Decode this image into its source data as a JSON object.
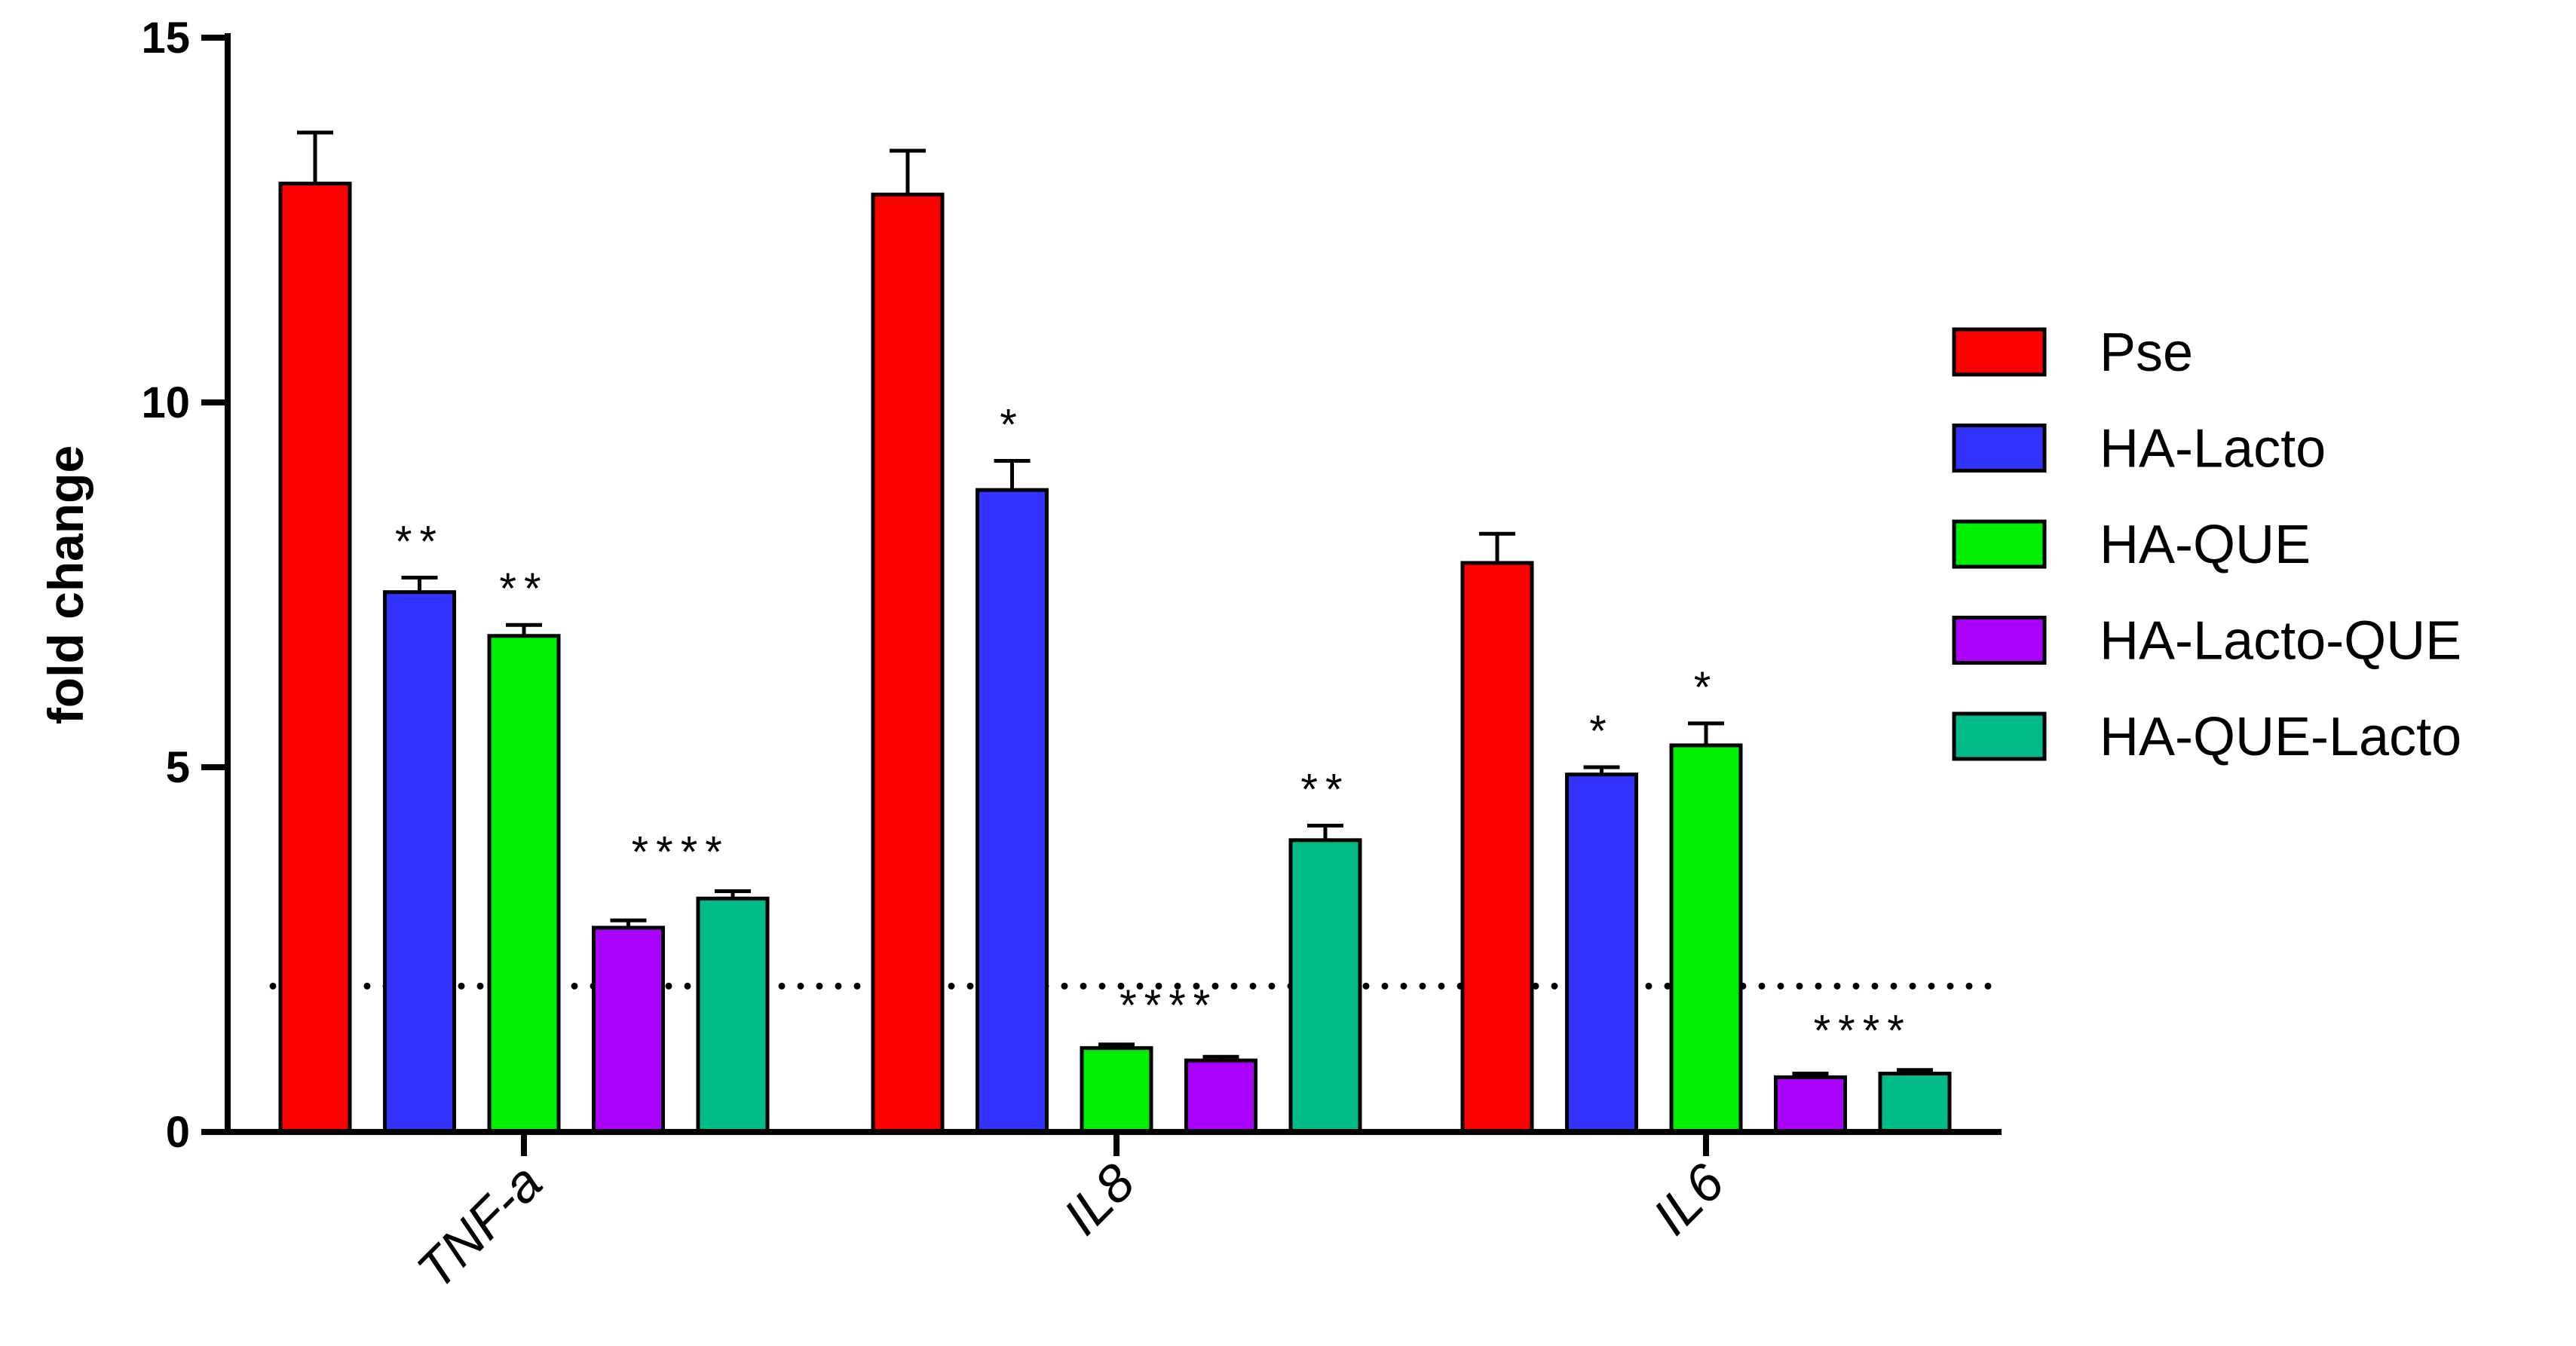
{
  "chart_data": {
    "type": "bar",
    "title": "",
    "xlabel": "",
    "ylabel": "fold change",
    "ylim": [
      0,
      15
    ],
    "yticks": [
      "0",
      "5",
      "10",
      "15"
    ],
    "ytick_values": [
      0,
      5,
      10,
      15
    ],
    "categories": [
      "TNF-a",
      "IL8",
      "IL6"
    ],
    "reference_line": {
      "y": 2,
      "style": "dotted"
    },
    "series": [
      {
        "name": "Pse",
        "color": "#ff0000",
        "values": [
          13.0,
          12.85,
          7.8
        ],
        "errors": [
          0.7,
          0.6,
          0.4
        ],
        "significance": [
          "",
          "",
          ""
        ]
      },
      {
        "name": "HA-Lacto",
        "color": "#3333ff",
        "values": [
          7.4,
          8.8,
          4.9
        ],
        "errors": [
          0.2,
          0.4,
          0.1
        ],
        "significance": [
          "**",
          "*",
          "*"
        ]
      },
      {
        "name": "HA-QUE",
        "color": "#00ee00",
        "values": [
          6.8,
          1.15,
          5.3
        ],
        "errors": [
          0.15,
          0.05,
          0.3
        ],
        "significance": [
          "**",
          "",
          "*"
        ]
      },
      {
        "name": "HA-Lacto-QUE",
        "color": "#aa00ff",
        "values": [
          2.8,
          0.98,
          0.75
        ],
        "errors": [
          0.1,
          0.05,
          0.05
        ],
        "significance": [
          "",
          "",
          ""
        ]
      },
      {
        "name": "HA-QUE-Lacto",
        "color": "#00bb88",
        "values": [
          3.2,
          4.0,
          0.8
        ],
        "errors": [
          0.1,
          0.2,
          0.05
        ],
        "significance": [
          "",
          "**",
          ""
        ]
      }
    ],
    "group_significance": [
      {
        "category": "TNF-a",
        "text": "****",
        "series": [
          "HA-Lacto-QUE",
          "HA-QUE-Lacto"
        ]
      },
      {
        "category": "IL8",
        "text": "****",
        "series": [
          "HA-QUE",
          "HA-Lacto-QUE"
        ]
      },
      {
        "category": "IL6",
        "text": "****",
        "series": [
          "HA-Lacto-QUE",
          "HA-QUE-Lacto"
        ]
      }
    ],
    "legend_position": "right",
    "grid": false
  }
}
